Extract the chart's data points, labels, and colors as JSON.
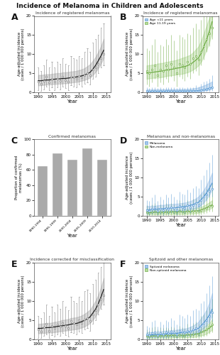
{
  "title": "Incidence of Melanoma in Children and Adolescents",
  "panel_labels": [
    "A",
    "B",
    "C",
    "D",
    "E",
    "F"
  ],
  "panel_titles": [
    "Incidence of registered melanomas",
    "Incidence of registered melanomas",
    "Confirmed melanomas",
    "Melanomas and non-melanomas",
    "Incidence corrected for misclassification",
    "Spitzoid and other melanomas"
  ],
  "years": [
    1990,
    1991,
    1992,
    1993,
    1994,
    1995,
    1996,
    1997,
    1998,
    1999,
    2000,
    2001,
    2002,
    2003,
    2004,
    2005,
    2006,
    2007,
    2008,
    2009,
    2010,
    2011,
    2012,
    2013,
    2014
  ],
  "panel_A": {
    "points": [
      2.8,
      2.2,
      3.0,
      4.0,
      2.5,
      3.5,
      2.8,
      3.5,
      3.0,
      4.0,
      3.2,
      2.8,
      4.0,
      3.8,
      3.5,
      4.2,
      3.8,
      4.5,
      5.0,
      4.5,
      6.0,
      6.5,
      7.5,
      9.0,
      10.0
    ],
    "ci_low": [
      0.5,
      0.3,
      0.8,
      1.5,
      0.5,
      1.2,
      0.6,
      1.2,
      0.8,
      1.5,
      1.0,
      0.6,
      1.8,
      1.5,
      1.2,
      2.0,
      1.5,
      2.2,
      2.5,
      2.0,
      3.5,
      4.0,
      5.0,
      6.5,
      7.0
    ],
    "ci_high": [
      6.5,
      5.5,
      7.0,
      8.5,
      6.5,
      8.0,
      6.5,
      8.0,
      7.5,
      9.0,
      7.5,
      7.0,
      9.5,
      9.0,
      8.5,
      9.5,
      9.0,
      10.5,
      11.5,
      10.5,
      13.0,
      14.0,
      15.0,
      17.0,
      18.0
    ],
    "spline": [
      3.0,
      3.0,
      3.1,
      3.2,
      3.2,
      3.3,
      3.4,
      3.5,
      3.5,
      3.6,
      3.6,
      3.7,
      3.8,
      3.9,
      4.0,
      4.1,
      4.3,
      4.5,
      4.8,
      5.2,
      6.0,
      7.0,
      8.2,
      9.5,
      11.0
    ],
    "spline_low": [
      1.8,
      1.8,
      1.9,
      2.0,
      2.0,
      2.1,
      2.1,
      2.2,
      2.2,
      2.3,
      2.3,
      2.4,
      2.5,
      2.6,
      2.7,
      2.8,
      3.0,
      3.2,
      3.5,
      3.8,
      4.5,
      5.3,
      6.3,
      7.5,
      9.0
    ],
    "spline_high": [
      4.5,
      4.5,
      4.6,
      4.7,
      4.7,
      4.8,
      4.9,
      5.0,
      5.0,
      5.2,
      5.2,
      5.3,
      5.4,
      5.5,
      5.6,
      5.8,
      6.0,
      6.3,
      6.8,
      7.3,
      8.2,
      9.2,
      10.5,
      12.0,
      14.0
    ],
    "ylim": [
      0,
      20
    ],
    "yticks": [
      0,
      5,
      10,
      15,
      20
    ],
    "color": "#888888",
    "spline_color": "#222222",
    "shade_color": "#bbbbbb"
  },
  "panel_B": {
    "pts_lt11": [
      0.3,
      0.2,
      0.3,
      0.3,
      0.2,
      0.3,
      0.2,
      0.3,
      0.3,
      0.3,
      0.3,
      0.2,
      0.3,
      0.3,
      0.2,
      0.3,
      0.3,
      0.3,
      0.4,
      0.3,
      0.5,
      0.7,
      0.8,
      1.0,
      1.2
    ],
    "ci_low_lt11": [
      0.0,
      0.0,
      0.0,
      0.0,
      0.0,
      0.0,
      0.0,
      0.0,
      0.0,
      0.0,
      0.0,
      0.0,
      0.0,
      0.0,
      0.0,
      0.0,
      0.0,
      0.0,
      0.0,
      0.0,
      0.0,
      0.0,
      0.1,
      0.2,
      0.3
    ],
    "ci_high_lt11": [
      1.2,
      1.0,
      1.2,
      1.2,
      1.0,
      1.2,
      1.0,
      1.2,
      1.2,
      1.2,
      1.2,
      1.0,
      1.2,
      1.2,
      1.0,
      1.2,
      1.2,
      1.2,
      1.8,
      1.5,
      2.2,
      2.8,
      3.0,
      3.5,
      4.5
    ],
    "spline_lt11": [
      0.22,
      0.22,
      0.23,
      0.23,
      0.23,
      0.24,
      0.24,
      0.25,
      0.25,
      0.25,
      0.26,
      0.26,
      0.27,
      0.27,
      0.28,
      0.29,
      0.3,
      0.33,
      0.37,
      0.41,
      0.5,
      0.65,
      0.82,
      1.0,
      1.25
    ],
    "spline_low_lt11": [
      0.05,
      0.05,
      0.05,
      0.06,
      0.06,
      0.06,
      0.07,
      0.07,
      0.07,
      0.08,
      0.08,
      0.08,
      0.09,
      0.09,
      0.1,
      0.11,
      0.12,
      0.14,
      0.17,
      0.2,
      0.26,
      0.36,
      0.5,
      0.65,
      0.85
    ],
    "spline_high_lt11": [
      0.7,
      0.7,
      0.72,
      0.72,
      0.73,
      0.74,
      0.74,
      0.75,
      0.76,
      0.76,
      0.77,
      0.78,
      0.8,
      0.8,
      0.82,
      0.84,
      0.88,
      0.98,
      1.1,
      1.22,
      1.5,
      1.75,
      2.08,
      2.38,
      2.8
    ],
    "pts_1119": [
      5.5,
      5.0,
      6.0,
      7.0,
      4.5,
      6.0,
      5.5,
      7.0,
      6.0,
      7.5,
      6.5,
      5.0,
      7.5,
      7.0,
      6.5,
      8.0,
      7.5,
      9.0,
      9.5,
      8.5,
      10.5,
      12.0,
      14.0,
      15.5,
      17.0
    ],
    "ci_low_1119": [
      2.0,
      1.5,
      2.5,
      3.5,
      1.5,
      2.5,
      2.0,
      3.5,
      2.5,
      4.0,
      3.0,
      1.5,
      4.0,
      3.5,
      3.0,
      4.0,
      3.5,
      5.0,
      5.5,
      4.5,
      7.0,
      8.5,
      10.5,
      12.0,
      14.0
    ],
    "ci_high_1119": [
      11.5,
      11.0,
      12.5,
      14.0,
      10.5,
      12.5,
      12.0,
      14.0,
      12.5,
      15.0,
      13.5,
      11.0,
      15.0,
      14.5,
      14.0,
      15.5,
      15.0,
      17.0,
      18.0,
      16.5,
      19.0,
      20.0,
      20.0,
      20.0,
      20.0
    ],
    "spline_1119": [
      5.0,
      5.1,
      5.2,
      5.3,
      5.4,
      5.5,
      5.6,
      5.8,
      5.9,
      6.0,
      6.1,
      6.3,
      6.4,
      6.6,
      6.7,
      7.0,
      7.3,
      7.8,
      8.4,
      9.0,
      10.2,
      12.0,
      13.8,
      16.0,
      18.5
    ],
    "spline_low_1119": [
      3.5,
      3.6,
      3.7,
      3.8,
      3.8,
      3.9,
      4.0,
      4.2,
      4.3,
      4.4,
      4.5,
      4.6,
      4.7,
      4.8,
      5.0,
      5.2,
      5.5,
      5.9,
      6.4,
      7.0,
      8.0,
      9.5,
      11.2,
      13.2,
      15.5
    ],
    "spline_high_1119": [
      7.0,
      7.1,
      7.2,
      7.3,
      7.5,
      7.6,
      7.7,
      7.9,
      8.0,
      8.2,
      8.3,
      8.5,
      8.7,
      9.0,
      9.2,
      9.5,
      9.8,
      10.4,
      11.2,
      12.0,
      13.5,
      15.5,
      17.5,
      19.5,
      20.0
    ],
    "color_lt11": "#5b9bd5",
    "color_1119": "#70ad47",
    "shade_lt11": "#a8c8ea",
    "shade_1119": "#b8dba0",
    "ylim": [
      0,
      20
    ],
    "yticks": [
      0,
      5,
      10,
      15,
      20
    ]
  },
  "panel_C": {
    "intervals": [
      "1990-1994",
      "1995-1999",
      "2000-2004",
      "2005-2009",
      "2010-2014"
    ],
    "proportions": [
      65,
      82,
      73,
      88,
      73
    ],
    "bar_color": "#aaaaaa",
    "ylim": [
      0,
      100
    ],
    "yticks": [
      0,
      20,
      40,
      60,
      80,
      100
    ]
  },
  "panel_D": {
    "pts_melanoma": [
      1.5,
      1.2,
      1.8,
      2.2,
      1.3,
      1.8,
      1.5,
      2.0,
      1.8,
      2.2,
      2.0,
      1.5,
      2.5,
      2.2,
      2.0,
      2.8,
      2.2,
      2.8,
      3.2,
      2.8,
      4.0,
      5.0,
      5.5,
      6.5,
      7.0
    ],
    "ci_low_mel": [
      0.2,
      0.1,
      0.4,
      0.6,
      0.1,
      0.4,
      0.2,
      0.6,
      0.4,
      0.7,
      0.5,
      0.2,
      0.9,
      0.7,
      0.5,
      1.0,
      0.7,
      1.2,
      1.4,
      1.0,
      2.2,
      3.0,
      3.8,
      4.8,
      5.0
    ],
    "ci_high_mel": [
      4.0,
      3.8,
      4.8,
      5.5,
      3.8,
      5.0,
      4.2,
      5.5,
      4.8,
      5.8,
      5.0,
      4.2,
      6.2,
      5.8,
      5.5,
      6.8,
      6.0,
      7.2,
      7.8,
      7.2,
      9.5,
      10.5,
      12.0,
      14.0,
      16.0
    ],
    "spline_mel": [
      1.5,
      1.5,
      1.6,
      1.6,
      1.7,
      1.8,
      1.8,
      1.9,
      1.9,
      2.0,
      2.0,
      2.1,
      2.2,
      2.3,
      2.4,
      2.5,
      2.7,
      2.9,
      3.2,
      3.5,
      4.2,
      5.0,
      6.0,
      7.2,
      8.5
    ],
    "spline_low_mel": [
      0.7,
      0.7,
      0.8,
      0.8,
      0.9,
      0.9,
      1.0,
      1.0,
      1.0,
      1.1,
      1.1,
      1.2,
      1.3,
      1.3,
      1.4,
      1.5,
      1.6,
      1.8,
      2.0,
      2.3,
      2.8,
      3.5,
      4.4,
      5.5,
      6.8
    ],
    "spline_high_mel": [
      2.5,
      2.5,
      2.6,
      2.6,
      2.7,
      2.8,
      2.8,
      2.9,
      3.0,
      3.0,
      3.1,
      3.1,
      3.2,
      3.3,
      3.4,
      3.6,
      3.8,
      4.1,
      4.5,
      5.0,
      5.8,
      6.8,
      8.0,
      9.5,
      11.2
    ],
    "pts_nonmel": [
      0.8,
      0.6,
      0.9,
      1.0,
      0.7,
      0.9,
      0.8,
      1.0,
      0.9,
      1.0,
      0.9,
      0.7,
      1.2,
      1.0,
      0.9,
      1.2,
      1.0,
      1.3,
      1.3,
      1.2,
      1.5,
      1.8,
      2.0,
      2.5,
      2.5
    ],
    "ci_low_nonmel": [
      0.0,
      0.0,
      0.1,
      0.1,
      0.0,
      0.1,
      0.0,
      0.1,
      0.0,
      0.1,
      0.0,
      0.0,
      0.1,
      0.1,
      0.0,
      0.1,
      0.1,
      0.2,
      0.2,
      0.1,
      0.3,
      0.5,
      0.7,
      1.0,
      1.0
    ],
    "ci_high_nonmel": [
      2.8,
      2.2,
      3.0,
      3.2,
      2.5,
      3.0,
      2.8,
      3.2,
      3.0,
      3.2,
      3.0,
      2.5,
      4.0,
      3.2,
      3.0,
      4.0,
      3.2,
      4.5,
      4.5,
      4.0,
      5.5,
      6.0,
      7.0,
      8.0,
      8.5
    ],
    "spline_nonmel": [
      0.8,
      0.8,
      0.8,
      0.9,
      0.9,
      0.9,
      0.9,
      0.9,
      0.9,
      1.0,
      1.0,
      1.0,
      1.0,
      1.0,
      1.0,
      1.1,
      1.1,
      1.2,
      1.2,
      1.3,
      1.5,
      1.8,
      2.1,
      2.4,
      2.8
    ],
    "spline_low_nonmel": [
      0.3,
      0.3,
      0.3,
      0.3,
      0.3,
      0.3,
      0.3,
      0.4,
      0.4,
      0.4,
      0.4,
      0.4,
      0.4,
      0.4,
      0.4,
      0.5,
      0.5,
      0.5,
      0.6,
      0.7,
      0.9,
      1.1,
      1.4,
      1.7,
      2.0
    ],
    "spline_high_nonmel": [
      1.4,
      1.4,
      1.4,
      1.5,
      1.5,
      1.5,
      1.5,
      1.5,
      1.5,
      1.6,
      1.6,
      1.6,
      1.6,
      1.6,
      1.7,
      1.7,
      1.8,
      1.9,
      2.0,
      2.1,
      2.3,
      2.6,
      3.0,
      3.5,
      4.0
    ],
    "color_mel": "#5b9bd5",
    "color_nonmel": "#70ad47",
    "shade_mel": "#a8c8ea",
    "shade_nonmel": "#b8dba0",
    "ylim": [
      0,
      20
    ],
    "yticks": [
      0,
      5,
      10,
      15,
      20
    ]
  },
  "panel_E": {
    "pts": [
      2.5,
      2.0,
      3.0,
      4.0,
      2.2,
      3.5,
      2.8,
      3.8,
      3.2,
      4.2,
      3.5,
      2.8,
      4.8,
      4.2,
      3.8,
      5.0,
      4.2,
      5.2,
      5.5,
      4.8,
      6.5,
      7.5,
      9.0,
      10.5,
      11.5
    ],
    "ci_low": [
      0.3,
      0.2,
      0.8,
      1.2,
      0.3,
      1.0,
      0.6,
      1.2,
      0.8,
      1.5,
      1.0,
      0.6,
      1.8,
      1.5,
      1.2,
      2.0,
      1.5,
      2.5,
      2.8,
      2.2,
      4.0,
      5.0,
      6.5,
      8.0,
      9.0
    ],
    "ci_high": [
      6.0,
      5.5,
      7.0,
      9.0,
      6.0,
      8.5,
      7.0,
      9.0,
      8.0,
      10.0,
      8.5,
      7.5,
      11.0,
      10.0,
      9.5,
      11.0,
      10.0,
      12.5,
      13.0,
      12.0,
      14.5,
      15.5,
      17.5,
      19.0,
      20.0
    ],
    "spline": [
      2.8,
      2.8,
      2.9,
      3.0,
      3.0,
      3.1,
      3.2,
      3.3,
      3.4,
      3.5,
      3.6,
      3.7,
      3.9,
      4.0,
      4.1,
      4.3,
      4.6,
      4.9,
      5.3,
      5.8,
      6.8,
      7.8,
      9.2,
      11.0,
      13.0
    ],
    "spline_low": [
      1.5,
      1.5,
      1.6,
      1.6,
      1.7,
      1.7,
      1.8,
      1.9,
      2.0,
      2.1,
      2.2,
      2.3,
      2.4,
      2.5,
      2.6,
      2.8,
      3.0,
      3.3,
      3.7,
      4.2,
      5.0,
      6.0,
      7.2,
      8.8,
      10.5
    ],
    "spline_high": [
      4.0,
      4.0,
      4.1,
      4.2,
      4.2,
      4.3,
      4.5,
      4.6,
      4.8,
      5.0,
      5.1,
      5.2,
      5.5,
      5.6,
      5.7,
      5.9,
      6.2,
      6.6,
      7.1,
      7.7,
      8.8,
      10.0,
      11.5,
      13.5,
      16.0
    ],
    "ylim": [
      0,
      20
    ],
    "yticks": [
      0,
      5,
      10,
      15,
      20
    ],
    "color": "#888888",
    "spline_color": "#222222",
    "shade_color": "#bbbbbb"
  },
  "panel_F": {
    "pts_spitz": [
      1.2,
      1.0,
      1.5,
      1.8,
      1.0,
      1.5,
      1.2,
      1.8,
      1.5,
      2.0,
      1.8,
      1.2,
      2.2,
      2.0,
      1.8,
      2.2,
      2.0,
      2.5,
      2.8,
      2.2,
      3.5,
      4.2,
      5.0,
      6.0,
      7.0
    ],
    "ci_low_spitz": [
      0.0,
      0.0,
      0.2,
      0.3,
      0.0,
      0.2,
      0.0,
      0.3,
      0.2,
      0.5,
      0.3,
      0.0,
      0.6,
      0.5,
      0.3,
      0.6,
      0.5,
      0.8,
      1.0,
      0.6,
      1.5,
      2.2,
      3.0,
      4.0,
      4.5
    ],
    "ci_high_spitz": [
      3.5,
      3.0,
      4.5,
      5.0,
      3.2,
      4.5,
      3.8,
      5.0,
      4.5,
      5.5,
      5.0,
      3.8,
      6.5,
      6.0,
      5.5,
      6.5,
      6.0,
      7.5,
      8.0,
      7.5,
      9.5,
      10.0,
      12.0,
      14.0,
      16.5
    ],
    "pts_nonspitz": [
      0.8,
      0.6,
      0.9,
      1.0,
      0.7,
      0.9,
      0.8,
      1.0,
      0.8,
      1.0,
      0.9,
      0.7,
      1.0,
      0.9,
      0.8,
      1.2,
      1.0,
      1.3,
      1.4,
      1.2,
      2.0,
      2.2,
      2.5,
      3.2,
      3.8
    ],
    "ci_low_nonspitz": [
      0.0,
      0.0,
      0.0,
      0.1,
      0.0,
      0.0,
      0.0,
      0.0,
      0.0,
      0.0,
      0.0,
      0.0,
      0.1,
      0.0,
      0.0,
      0.1,
      0.1,
      0.2,
      0.2,
      0.1,
      0.5,
      0.6,
      0.9,
      1.4,
      1.8
    ],
    "ci_high_nonspitz": [
      2.5,
      2.2,
      3.0,
      3.2,
      2.5,
      3.0,
      2.8,
      3.0,
      2.8,
      3.2,
      3.0,
      2.5,
      3.5,
      3.0,
      2.8,
      4.0,
      3.2,
      4.2,
      4.5,
      4.0,
      6.0,
      6.5,
      7.5,
      8.5,
      10.5
    ],
    "spline_spitz": [
      1.0,
      1.0,
      1.1,
      1.1,
      1.2,
      1.2,
      1.3,
      1.3,
      1.4,
      1.4,
      1.5,
      1.5,
      1.6,
      1.7,
      1.7,
      1.8,
      2.0,
      2.2,
      2.5,
      2.8,
      3.5,
      4.3,
      5.2,
      6.3,
      7.8
    ],
    "spline_low_spitz": [
      0.4,
      0.4,
      0.5,
      0.5,
      0.5,
      0.6,
      0.6,
      0.6,
      0.7,
      0.7,
      0.8,
      0.8,
      0.8,
      0.9,
      0.9,
      1.0,
      1.1,
      1.3,
      1.5,
      1.8,
      2.4,
      3.0,
      3.8,
      4.8,
      6.0
    ],
    "spline_high_spitz": [
      1.8,
      1.8,
      1.9,
      1.9,
      2.0,
      2.0,
      2.1,
      2.2,
      2.2,
      2.3,
      2.4,
      2.4,
      2.6,
      2.7,
      2.7,
      2.9,
      3.2,
      3.5,
      4.0,
      4.5,
      5.5,
      6.5,
      7.8,
      9.5,
      12.0
    ],
    "spline_nonspitz": [
      0.7,
      0.7,
      0.8,
      0.8,
      0.8,
      0.8,
      0.9,
      0.9,
      0.9,
      0.9,
      1.0,
      1.0,
      1.0,
      1.0,
      1.0,
      1.1,
      1.1,
      1.2,
      1.3,
      1.4,
      1.7,
      2.0,
      2.4,
      2.9,
      3.5
    ],
    "spline_low_nonspitz": [
      0.2,
      0.2,
      0.2,
      0.2,
      0.3,
      0.3,
      0.3,
      0.3,
      0.3,
      0.3,
      0.4,
      0.4,
      0.4,
      0.4,
      0.4,
      0.4,
      0.5,
      0.5,
      0.6,
      0.7,
      0.9,
      1.1,
      1.4,
      1.9,
      2.4
    ],
    "spline_high_nonspitz": [
      1.3,
      1.3,
      1.4,
      1.4,
      1.4,
      1.4,
      1.5,
      1.5,
      1.5,
      1.5,
      1.6,
      1.6,
      1.6,
      1.7,
      1.7,
      1.8,
      1.8,
      1.9,
      2.1,
      2.3,
      2.7,
      3.1,
      3.6,
      4.2,
      5.2
    ],
    "color_spitz": "#5b9bd5",
    "color_nonspitz": "#70ad47",
    "shade_spitz": "#a8c8ea",
    "shade_nonspitz": "#b8dba0",
    "ylim": [
      0,
      20
    ],
    "yticks": [
      0,
      5,
      10,
      15,
      20
    ]
  },
  "ylabel": "Age-adjusted incidence\n(cases / 1 000 000 persons)",
  "xlabel": "Year",
  "bg_color": "#ffffff",
  "axis_color": "#555555"
}
